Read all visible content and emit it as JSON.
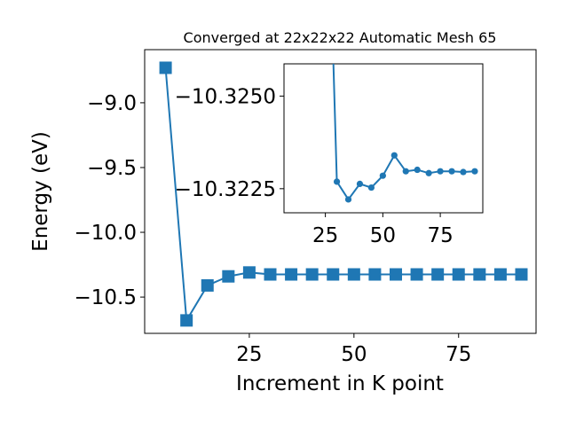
{
  "chart_data": [
    {
      "type": "line",
      "title": "Converged at 22x22x22 Automatic Mesh 65",
      "xlabel": "Increment in K point",
      "ylabel": "Energy (eV)",
      "xlim": [
        0,
        93.5
      ],
      "ylim": [
        -10.78,
        -8.59
      ],
      "xticks": [
        25,
        50,
        75
      ],
      "xtick_labels": [
        "25",
        "50",
        "75"
      ],
      "yticks": [
        -9.0,
        -9.5,
        -10.0,
        -10.5
      ],
      "ytick_labels": [
        "−9.0",
        "−9.5",
        "−10.0",
        "−10.5"
      ],
      "marker": "square",
      "color": "#1f77b4",
      "x": [
        5,
        10,
        15,
        20,
        25,
        30,
        35,
        40,
        45,
        50,
        55,
        60,
        65,
        70,
        75,
        80,
        85,
        90
      ],
      "y": [
        -8.73,
        -10.68,
        -10.41,
        -10.34,
        -10.31,
        -10.325,
        -10.325,
        -10.325,
        -10.325,
        -10.325,
        -10.325,
        -10.325,
        -10.325,
        -10.325,
        -10.325,
        -10.325,
        -10.325,
        -10.325
      ]
    },
    {
      "type": "line",
      "title": "",
      "xlabel": "",
      "ylabel": "",
      "xlim": [
        7,
        93.5
      ],
      "ylim": [
        -10.32185,
        -10.32587
      ],
      "xticks": [
        25,
        50,
        75
      ],
      "xtick_labels": [
        "25",
        "50",
        "75"
      ],
      "yticks": [
        -10.3225,
        -10.325
      ],
      "ytick_labels": [
        "−10.3225",
        "−10.3250"
      ],
      "marker": "circle",
      "color": "#1f77b4",
      "x": [
        30,
        35,
        40,
        45,
        50,
        55,
        60,
        65,
        70,
        75,
        80,
        85,
        90
      ],
      "y": [
        -10.32269,
        -10.32221,
        -10.32263,
        -10.32253,
        -10.32285,
        -10.3234,
        -10.32297,
        -10.32301,
        -10.32292,
        -10.32297,
        -10.32297,
        -10.32295,
        -10.32297
      ],
      "line_x_start": 28.5,
      "line_y_start": -10.3262
    }
  ]
}
